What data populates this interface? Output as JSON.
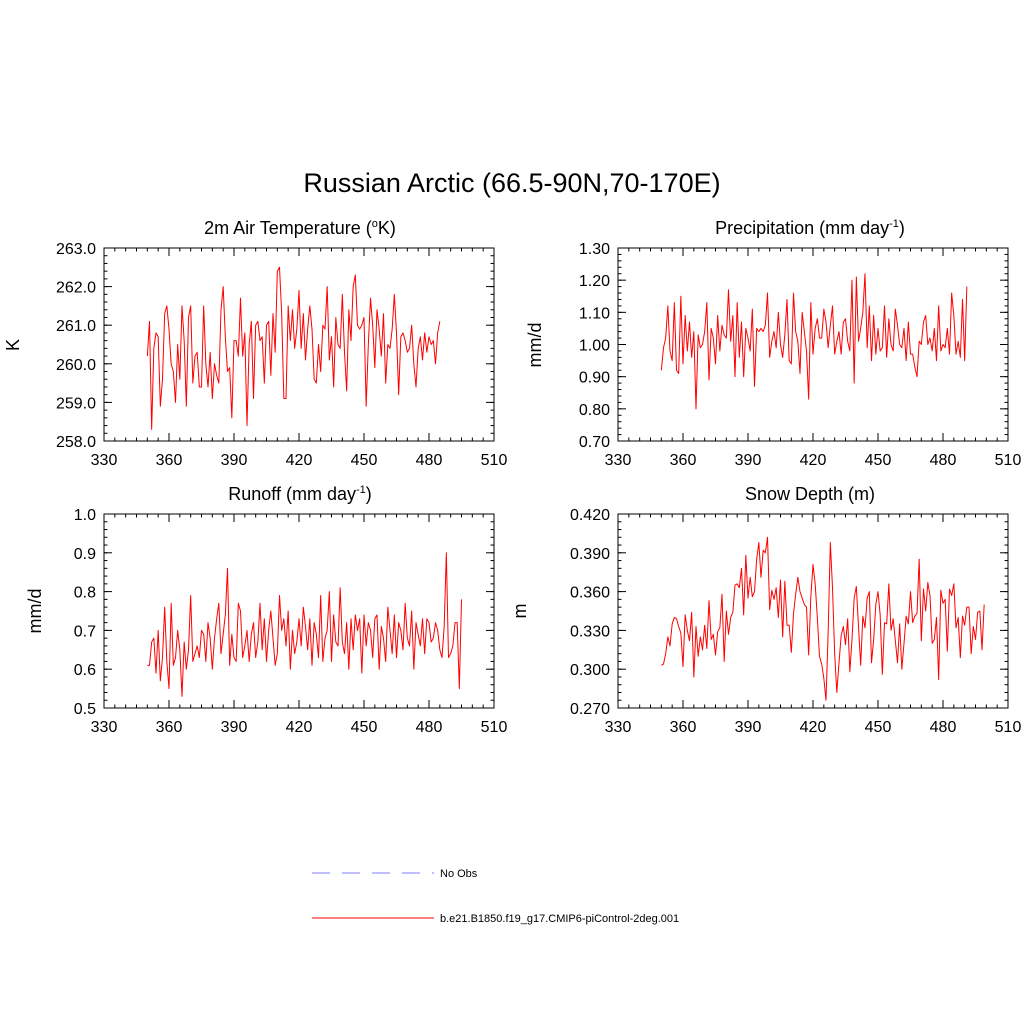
{
  "title": "Russian Arctic (66.5-90N,70-170E)",
  "colors": {
    "model": "#ff0000",
    "obs": "#9999ff",
    "axis": "#000000"
  },
  "legend": {
    "obs_label": "No Obs",
    "model_label": "b.e21.B1850.f19_g17.CMIP6-piControl-2deg.001"
  },
  "chart_data": [
    {
      "id": "tas",
      "type": "line",
      "title_main": "2m Air Temperature (",
      "title_sup": "o",
      "title_tail": "K)",
      "ylabel": "K",
      "xlim": [
        330,
        510
      ],
      "ylim": [
        258.0,
        263.0
      ],
      "x_ticks": [
        330,
        360,
        390,
        420,
        450,
        480,
        510
      ],
      "x_tick_labels": [
        "330",
        "360",
        "390",
        "420",
        "450",
        "480",
        "510"
      ],
      "y_ticks": [
        258.0,
        259.0,
        260.0,
        261.0,
        262.0,
        263.0
      ],
      "y_tick_labels": [
        "258.0",
        "259.0",
        "260.0",
        "261.0",
        "262.0",
        "263.0"
      ],
      "series": [
        {
          "name": "b.e21.B1850.f19_g17.CMIP6-piControl-2deg.001",
          "x_start": 350,
          "x_step": 1,
          "values": [
            260.2,
            261.1,
            258.3,
            260.4,
            260.8,
            260.7,
            258.9,
            259.6,
            261.3,
            261.5,
            260.9,
            260.0,
            259.8,
            259.0,
            260.5,
            259.6,
            261.5,
            260.6,
            258.9,
            261.2,
            261.5,
            259.5,
            260.2,
            260.3,
            259.4,
            259.4,
            261.5,
            260.0,
            259.4,
            260.3,
            259.1,
            260.0,
            259.7,
            259.5,
            261.4,
            262.0,
            260.7,
            259.8,
            259.9,
            258.6,
            260.6,
            260.6,
            260.2,
            261.7,
            260.2,
            260.8,
            258.4,
            260.5,
            261.1,
            259.1,
            261.0,
            261.1,
            260.6,
            260.7,
            259.5,
            261.0,
            261.1,
            259.7,
            261.3,
            260.3,
            262.4,
            262.5,
            261.3,
            259.1,
            259.1,
            261.5,
            260.6,
            261.4,
            260.4,
            260.9,
            261.9,
            260.4,
            261.3,
            260.1,
            260.9,
            261.5,
            260.9,
            259.6,
            259.5,
            260.5,
            259.8,
            261.0,
            260.9,
            262.0,
            260.1,
            260.7,
            259.4,
            261.2,
            260.5,
            260.4,
            261.8,
            260.3,
            259.3,
            261.4,
            260.6,
            262.0,
            262.3,
            261.0,
            260.9,
            261.0,
            261.2,
            258.9,
            260.5,
            261.7,
            261.0,
            259.9,
            261.4,
            260.9,
            260.2,
            261.3,
            259.5,
            260.5,
            260.4,
            260.9,
            261.8,
            260.8,
            259.2,
            260.7,
            260.8,
            260.6,
            260.3,
            260.4,
            261.0,
            260.0,
            259.4,
            260.4,
            260.7,
            260.1,
            260.8,
            260.3,
            260.7,
            260.5,
            260.6,
            260.0,
            260.8,
            261.1
          ]
        }
      ]
    },
    {
      "id": "pr",
      "type": "line",
      "title_main": "Precipitation (mm day",
      "title_sup": "-1",
      "title_tail": ")",
      "ylabel": "mm/d",
      "xlim": [
        330,
        510
      ],
      "ylim": [
        0.7,
        1.3
      ],
      "x_ticks": [
        330,
        360,
        390,
        420,
        450,
        480,
        510
      ],
      "x_tick_labels": [
        "330",
        "360",
        "390",
        "420",
        "450",
        "480",
        "510"
      ],
      "y_ticks": [
        0.7,
        0.8,
        0.9,
        1.0,
        1.1,
        1.2,
        1.3
      ],
      "y_tick_labels": [
        "0.70",
        "0.80",
        "0.90",
        "1.00",
        "1.10",
        "1.20",
        "1.30"
      ],
      "series": [
        {
          "name": "b.e21.B1850.f19_g17.CMIP6-piControl-2deg.001",
          "x_start": 350,
          "x_step": 1,
          "values": [
            0.92,
            0.99,
            1.02,
            1.12,
            0.98,
            0.95,
            1.13,
            0.92,
            0.91,
            1.15,
            0.94,
            1.09,
            0.98,
            1.07,
            0.96,
            1.04,
            0.8,
            1.03,
            0.99,
            1.0,
            1.04,
            1.13,
            0.89,
            1.05,
            1.02,
            0.94,
            1.09,
            0.98,
            1.06,
            1.03,
            1.02,
            1.17,
            1.01,
            1.09,
            0.9,
            1.13,
            0.96,
            1.07,
            0.9,
            1.05,
            1.02,
            0.98,
            1.11,
            0.87,
            1.05,
            1.04,
            1.05,
            1.04,
            1.06,
            1.16,
            0.96,
            1.01,
            1.04,
            0.99,
            1.1,
            1.0,
            0.96,
            1.03,
            1.14,
            0.95,
            0.94,
            1.16,
            1.04,
            1.01,
            0.91,
            1.1,
            1.04,
            0.98,
            0.83,
            1.13,
            0.97,
            1.05,
            1.08,
            1.02,
            1.02,
            1.11,
            1.07,
            0.99,
            1.06,
            1.12,
            0.97,
            1.01,
            1.04,
            0.97,
            1.07,
            1.08,
            1.01,
            0.98,
            1.2,
            0.88,
            1.21,
            1.01,
            1.05,
            1.1,
            1.22,
            0.99,
            1.12,
            0.95,
            1.09,
            0.97,
            1.05,
            0.98,
            0.99,
            1.12,
            0.96,
            1.08,
            1.0,
            0.98,
            1.11,
            1.06,
            1.0,
            0.99,
            1.05,
            0.95,
            1.07,
            0.97,
            0.97,
            0.93,
            0.9,
            1.01,
            1.0,
            1.07,
            1.09,
            1.0,
            1.02,
            0.98,
            1.05,
            0.95,
            1.12,
            0.98,
            1.0,
            0.99,
            1.05,
            0.97,
            1.16,
            1.09,
            0.97,
            1.01,
            0.96,
            1.14,
            0.95,
            1.18
          ]
        }
      ]
    },
    {
      "id": "mrro",
      "type": "line",
      "title_main": "Runoff (mm day",
      "title_sup": "-1",
      "title_tail": ")",
      "ylabel": "mm/d",
      "xlim": [
        330,
        510
      ],
      "ylim": [
        0.5,
        1.0
      ],
      "x_ticks": [
        330,
        360,
        390,
        420,
        450,
        480,
        510
      ],
      "x_tick_labels": [
        "330",
        "360",
        "390",
        "420",
        "450",
        "480",
        "510"
      ],
      "y_ticks": [
        0.5,
        0.6,
        0.7,
        0.8,
        0.9,
        1.0
      ],
      "y_tick_labels": [
        "0.5",
        "0.6",
        "0.7",
        "0.8",
        "0.9",
        "1.0"
      ],
      "series": [
        {
          "name": "b.e21.B1850.f19_g17.CMIP6-piControl-2deg.001",
          "x_start": 350,
          "x_step": 1,
          "values": [
            0.61,
            0.61,
            0.67,
            0.68,
            0.59,
            0.7,
            0.57,
            0.63,
            0.76,
            0.62,
            0.55,
            0.77,
            0.61,
            0.63,
            0.7,
            0.65,
            0.53,
            0.67,
            0.6,
            0.65,
            0.79,
            0.62,
            0.64,
            0.66,
            0.63,
            0.7,
            0.69,
            0.62,
            0.72,
            0.68,
            0.6,
            0.68,
            0.73,
            0.77,
            0.64,
            0.69,
            0.74,
            0.86,
            0.61,
            0.69,
            0.63,
            0.62,
            0.77,
            0.75,
            0.63,
            0.66,
            0.7,
            0.62,
            0.69,
            0.72,
            0.63,
            0.67,
            0.77,
            0.65,
            0.73,
            0.62,
            0.7,
            0.75,
            0.68,
            0.61,
            0.64,
            0.79,
            0.7,
            0.73,
            0.66,
            0.75,
            0.6,
            0.7,
            0.64,
            0.67,
            0.73,
            0.66,
            0.76,
            0.71,
            0.65,
            0.73,
            0.61,
            0.72,
            0.69,
            0.63,
            0.79,
            0.62,
            0.68,
            0.7,
            0.8,
            0.62,
            0.74,
            0.67,
            0.66,
            0.81,
            0.67,
            0.64,
            0.72,
            0.6,
            0.73,
            0.65,
            0.74,
            0.7,
            0.73,
            0.59,
            0.74,
            0.66,
            0.72,
            0.7,
            0.63,
            0.73,
            0.74,
            0.6,
            0.71,
            0.68,
            0.62,
            0.76,
            0.7,
            0.64,
            0.74,
            0.63,
            0.72,
            0.7,
            0.65,
            0.77,
            0.68,
            0.66,
            0.75,
            0.6,
            0.72,
            0.69,
            0.66,
            0.73,
            0.64,
            0.73,
            0.72,
            0.67,
            0.68,
            0.72,
            0.7,
            0.65,
            0.63,
            0.71,
            0.9,
            0.63,
            0.64,
            0.66,
            0.72,
            0.72,
            0.55,
            0.78
          ]
        }
      ]
    },
    {
      "id": "snd",
      "type": "line",
      "title_main": "Snow Depth (m)",
      "title_sup": "",
      "title_tail": "",
      "ylabel": "m",
      "xlim": [
        330,
        510
      ],
      "ylim": [
        0.27,
        0.42
      ],
      "x_ticks": [
        330,
        360,
        390,
        420,
        450,
        480,
        510
      ],
      "x_tick_labels": [
        "330",
        "360",
        "390",
        "420",
        "450",
        "480",
        "510"
      ],
      "y_ticks": [
        0.27,
        0.3,
        0.33,
        0.36,
        0.39,
        0.42
      ],
      "y_tick_labels": [
        "0.270",
        "0.300",
        "0.330",
        "0.360",
        "0.390",
        "0.420"
      ],
      "series": [
        {
          "name": "b.e21.B1850.f19_g17.CMIP6-piControl-2deg.001",
          "x_start": 350,
          "x_step": 1,
          "values": [
            0.303,
            0.304,
            0.312,
            0.325,
            0.318,
            0.335,
            0.34,
            0.339,
            0.333,
            0.328,
            0.302,
            0.342,
            0.33,
            0.322,
            0.344,
            0.294,
            0.333,
            0.31,
            0.325,
            0.315,
            0.334,
            0.316,
            0.353,
            0.323,
            0.327,
            0.311,
            0.329,
            0.332,
            0.358,
            0.306,
            0.345,
            0.327,
            0.34,
            0.344,
            0.365,
            0.366,
            0.363,
            0.378,
            0.342,
            0.388,
            0.355,
            0.371,
            0.356,
            0.36,
            0.385,
            0.398,
            0.371,
            0.392,
            0.39,
            0.402,
            0.346,
            0.361,
            0.354,
            0.363,
            0.34,
            0.369,
            0.325,
            0.368,
            0.334,
            0.334,
            0.313,
            0.343,
            0.358,
            0.371,
            0.36,
            0.355,
            0.35,
            0.348,
            0.311,
            0.356,
            0.381,
            0.366,
            0.34,
            0.31,
            0.304,
            0.293,
            0.276,
            0.329,
            0.398,
            0.363,
            0.312,
            0.282,
            0.305,
            0.326,
            0.333,
            0.319,
            0.339,
            0.298,
            0.323,
            0.355,
            0.364,
            0.333,
            0.303,
            0.341,
            0.332,
            0.355,
            0.36,
            0.305,
            0.323,
            0.35,
            0.36,
            0.342,
            0.296,
            0.336,
            0.335,
            0.366,
            0.33,
            0.339,
            0.322,
            0.305,
            0.335,
            0.3,
            0.32,
            0.341,
            0.335,
            0.36,
            0.336,
            0.341,
            0.343,
            0.385,
            0.322,
            0.362,
            0.345,
            0.367,
            0.357,
            0.32,
            0.323,
            0.34,
            0.292,
            0.361,
            0.351,
            0.354,
            0.314,
            0.362,
            0.357,
            0.366,
            0.332,
            0.34,
            0.309,
            0.341,
            0.334,
            0.348,
            0.348,
            0.312,
            0.333,
            0.323,
            0.344,
            0.345,
            0.315,
            0.35
          ]
        }
      ]
    }
  ]
}
